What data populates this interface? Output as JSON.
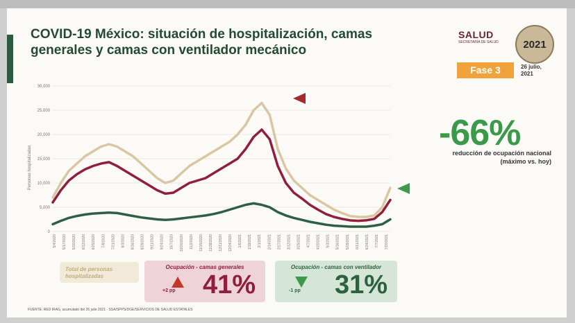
{
  "header": {
    "title": "COVID-19 México: situación de hospitalización, camas generales y camas con ventilador mecánico",
    "logo_text": "SALUD",
    "logo_subtext": "SECRETARÍA DE SALUD",
    "seal_text": "2021",
    "phase_label": "Fase 3",
    "date": "26 julio, 2021"
  },
  "summary": {
    "reduction_value": "-66%",
    "reduction_label": "reducción de ocupación nacional (máximo vs. hoy)"
  },
  "legend": {
    "total_label": "Total de personas hospitalizadas",
    "general": {
      "label": "Ocupación - camas generales",
      "change": "+2 pp",
      "value": "41%"
    },
    "ventilator": {
      "label": "Ocupación - camas con ventilador",
      "change": "-1 pp",
      "value": "31%"
    }
  },
  "footer": "FUENTE: RED IRAG, acumulado del 26 julio 2021 · SSA/SPPS/DGE/SERVICIOS DE SALUD ESTATALES",
  "colors": {
    "title": "#234a33",
    "total": "#d9c7a2",
    "general": "#8f1f3d",
    "ventilator": "#2d5f44",
    "accent_green": "#3a9a4a",
    "phase": "#f0a33b"
  },
  "chart_data": {
    "type": "line",
    "ylabel": "Personas hospitalizadas",
    "ylim": [
      0,
      30000
    ],
    "yticks": [
      "0",
      "5,000",
      "10,000",
      "15,000",
      "20,000",
      "25,000",
      "30,000"
    ],
    "xtick_labels": [
      "5/4/2020",
      "5/17/2020",
      "5/30/2020",
      "6/12/2020",
      "6/25/2020",
      "7/8/2020",
      "7/21/2020",
      "8/3/2020",
      "8/16/2020",
      "8/29/2020",
      "9/11/2020",
      "9/24/2020",
      "10/7/2020",
      "10/20/2020",
      "11/2/2020",
      "11/15/2020",
      "11/28/2020",
      "12/11/2020",
      "12/24/2020",
      "1/6/2021",
      "1/19/2021",
      "2/1/2021",
      "2/14/2021",
      "2/27/2021",
      "3/12/2021",
      "3/25/2021",
      "4/7/2021",
      "4/20/2021",
      "5/3/2021",
      "5/16/2021",
      "5/29/2021",
      "6/11/2021",
      "6/24/2021",
      "7/7/2021",
      "7/20/2021"
    ],
    "grid": true,
    "series": [
      {
        "name": "Total de personas hospitalizadas",
        "color": "#d9c7a2",
        "values": [
          7000,
          10000,
          12500,
          14000,
          15500,
          16500,
          17500,
          18000,
          17500,
          16500,
          15500,
          14000,
          12500,
          11000,
          10000,
          10500,
          12000,
          13500,
          14500,
          15500,
          16500,
          17500,
          18500,
          20000,
          22000,
          25000,
          26500,
          24000,
          17000,
          13000,
          10500,
          9000,
          7500,
          6500,
          5500,
          4500,
          3800,
          3200,
          3000,
          3000,
          3300,
          5000,
          9000
        ]
      },
      {
        "name": "Ocupación - camas generales",
        "color": "#8f1f3d",
        "values": [
          6000,
          8500,
          10500,
          11800,
          12800,
          13500,
          14000,
          14300,
          13500,
          12500,
          11500,
          10500,
          9500,
          8500,
          7800,
          8000,
          9000,
          10000,
          10500,
          11000,
          12000,
          13000,
          14000,
          15000,
          17000,
          19500,
          21000,
          19000,
          13500,
          10000,
          8000,
          6800,
          5500,
          4500,
          3600,
          3000,
          2600,
          2300,
          2200,
          2300,
          2600,
          4000,
          6500
        ]
      },
      {
        "name": "Ocupación - camas con ventilador",
        "color": "#2d5f44",
        "values": [
          1500,
          2200,
          2800,
          3200,
          3500,
          3700,
          3800,
          3900,
          3800,
          3500,
          3200,
          2900,
          2700,
          2500,
          2400,
          2500,
          2700,
          2900,
          3100,
          3300,
          3600,
          4000,
          4500,
          5000,
          5500,
          5800,
          5500,
          5000,
          4000,
          3300,
          2800,
          2400,
          2000,
          1700,
          1400,
          1200,
          1100,
          1000,
          1000,
          1000,
          1200,
          1500,
          2500
        ]
      }
    ]
  }
}
